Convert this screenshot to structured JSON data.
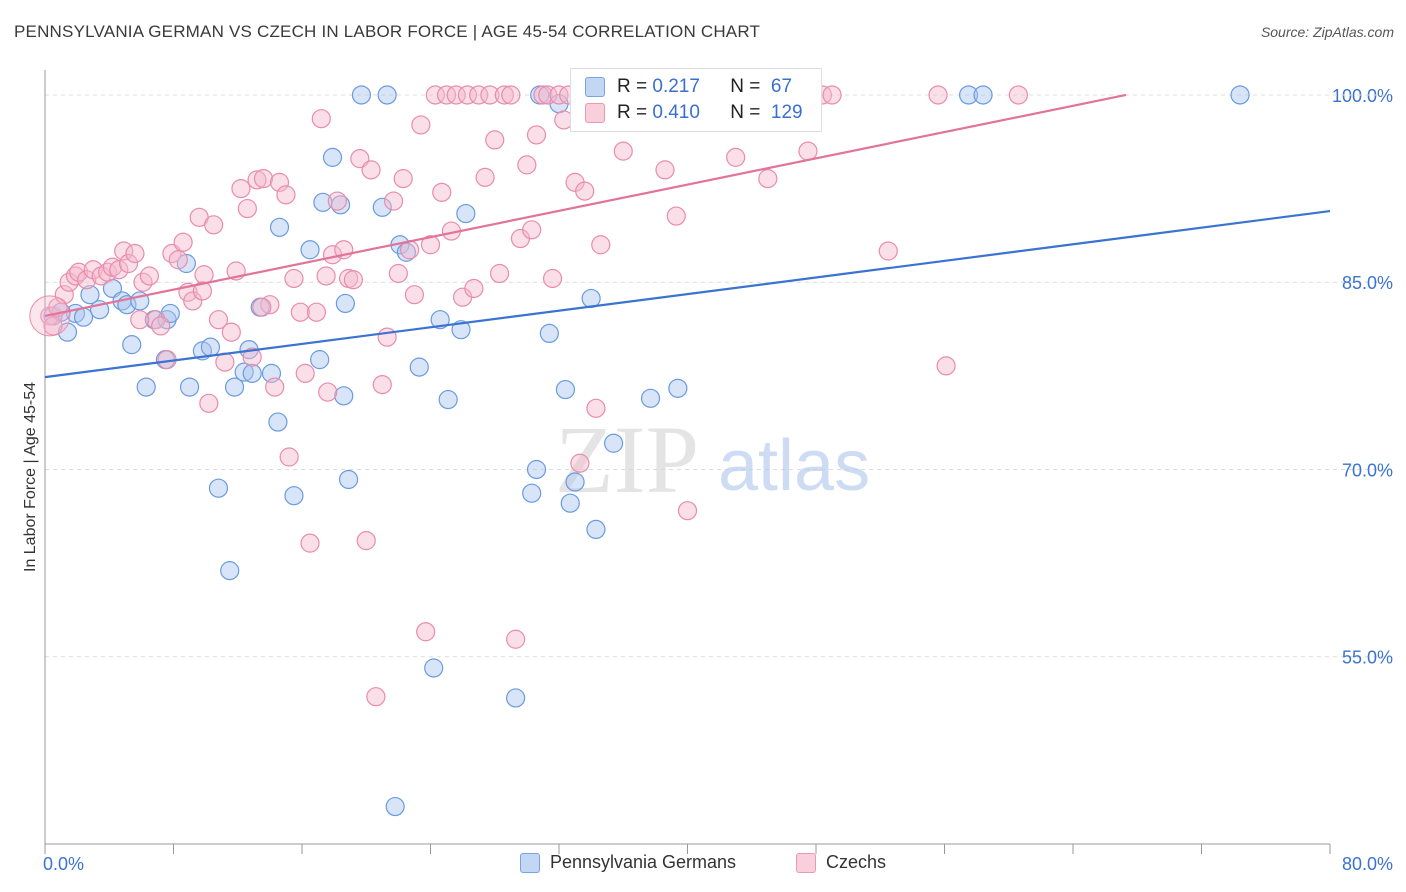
{
  "title": "PENNSYLVANIA GERMAN VS CZECH IN LABOR FORCE | AGE 45-54 CORRELATION CHART",
  "source": "Source: ZipAtlas.com",
  "watermark": {
    "zip": "ZIP",
    "atlas": "atlas"
  },
  "legend": {
    "rows": [
      {
        "r_label": "R =",
        "r_value": "0.217",
        "n_label": "N =",
        "n_value": "67",
        "color": "#a9c4ee"
      },
      {
        "r_label": "R =",
        "r_value": "0.410",
        "n_label": "N =",
        "n_value": "129",
        "color": "#f5b8cc"
      }
    ]
  },
  "bottom_legend": [
    {
      "label": "Pennsylvania Germans",
      "color": "#a9c4ee"
    },
    {
      "label": "Czechs",
      "color": "#f5b8cc"
    }
  ],
  "chart_data": {
    "type": "scatter",
    "title": "PENNSYLVANIA GERMAN VS CZECH IN LABOR FORCE | AGE 45-54 CORRELATION CHART",
    "xlabel": "",
    "ylabel": "In Labor Force | Age 45-54",
    "xlim": [
      0,
      80
    ],
    "ylim": [
      40,
      102
    ],
    "x_tick_labels": [
      "0.0%",
      "80.0%"
    ],
    "y_tick_labels": [
      "55.0%",
      "70.0%",
      "85.0%",
      "100.0%"
    ],
    "y_ticks": [
      55,
      70,
      85,
      100
    ],
    "grid": true,
    "series": [
      {
        "name": "Pennsylvania Germans",
        "color": "#6a9be0",
        "fill": "#a9c4ee",
        "trend": {
          "x": [
            0,
            80
          ],
          "y": [
            77.4,
            90.7
          ],
          "color": "#3a73d1"
        },
        "points": [
          [
            0.5,
            82.3
          ],
          [
            1.4,
            81.0
          ],
          [
            1.9,
            82.5
          ],
          [
            2.4,
            82.2
          ],
          [
            2.8,
            84.0
          ],
          [
            3.4,
            82.8
          ],
          [
            4.2,
            84.5
          ],
          [
            4.8,
            83.5
          ],
          [
            5.1,
            83.2
          ],
          [
            5.4,
            80.0
          ],
          [
            5.9,
            83.5
          ],
          [
            6.3,
            76.6
          ],
          [
            6.8,
            82.0
          ],
          [
            7.5,
            78.8
          ],
          [
            7.6,
            82.0
          ],
          [
            7.8,
            82.5
          ],
          [
            8.8,
            86.5
          ],
          [
            9.0,
            76.6
          ],
          [
            9.8,
            79.5
          ],
          [
            10.3,
            79.8
          ],
          [
            10.8,
            68.5
          ],
          [
            11.5,
            61.9
          ],
          [
            11.8,
            76.6
          ],
          [
            12.4,
            77.8
          ],
          [
            12.7,
            79.6
          ],
          [
            12.9,
            77.7
          ],
          [
            13.4,
            83.0
          ],
          [
            14.1,
            77.7
          ],
          [
            14.5,
            73.8
          ],
          [
            14.6,
            89.4
          ],
          [
            15.5,
            67.9
          ],
          [
            16.5,
            87.6
          ],
          [
            17.1,
            78.8
          ],
          [
            17.3,
            91.4
          ],
          [
            17.9,
            95.0
          ],
          [
            18.6,
            75.9
          ],
          [
            18.9,
            69.2
          ],
          [
            18.4,
            91.2
          ],
          [
            18.7,
            83.3
          ],
          [
            19.7,
            100.0
          ],
          [
            21.0,
            91.0
          ],
          [
            21.3,
            100.0
          ],
          [
            22.1,
            88.0
          ],
          [
            22.5,
            87.4
          ],
          [
            23.3,
            78.2
          ],
          [
            24.2,
            54.1
          ],
          [
            24.6,
            82.0
          ],
          [
            25.1,
            75.6
          ],
          [
            25.9,
            81.2
          ],
          [
            26.2,
            90.5
          ],
          [
            29.3,
            51.7
          ],
          [
            30.3,
            68.1
          ],
          [
            30.6,
            70.0
          ],
          [
            30.8,
            100.0
          ],
          [
            31.4,
            80.9
          ],
          [
            32.0,
            99.3
          ],
          [
            32.4,
            76.4
          ],
          [
            32.7,
            67.3
          ],
          [
            33.0,
            69.0
          ],
          [
            34.0,
            83.7
          ],
          [
            34.3,
            65.2
          ],
          [
            35.4,
            72.1
          ],
          [
            37.7,
            75.7
          ],
          [
            39.4,
            76.5
          ],
          [
            21.8,
            43.0
          ],
          [
            57.5,
            100.0
          ],
          [
            58.4,
            100.0
          ],
          [
            74.4,
            100.0
          ],
          [
            1.0,
            82.6
          ]
        ]
      },
      {
        "name": "Czechs",
        "color": "#e98cab",
        "fill": "#f5b8cc",
        "trend": {
          "x": [
            0,
            67.3
          ],
          "y": [
            82.3,
            100.0
          ],
          "color": "#e2739a"
        },
        "points": [
          [
            0.3,
            82.3
          ],
          [
            0.5,
            81.5
          ],
          [
            0.8,
            83.0
          ],
          [
            1.2,
            84.0
          ],
          [
            1.5,
            85.0
          ],
          [
            1.9,
            85.5
          ],
          [
            2.1,
            85.8
          ],
          [
            2.6,
            85.2
          ],
          [
            3.0,
            86.0
          ],
          [
            3.5,
            85.5
          ],
          [
            3.9,
            85.8
          ],
          [
            4.2,
            86.2
          ],
          [
            4.6,
            86.0
          ],
          [
            4.9,
            87.5
          ],
          [
            5.2,
            86.5
          ],
          [
            5.6,
            87.3
          ],
          [
            6.1,
            85.0
          ],
          [
            6.5,
            85.5
          ],
          [
            6.9,
            82.0
          ],
          [
            7.2,
            81.5
          ],
          [
            7.6,
            78.8
          ],
          [
            7.9,
            87.3
          ],
          [
            8.3,
            86.8
          ],
          [
            8.6,
            88.2
          ],
          [
            8.9,
            84.2
          ],
          [
            9.2,
            83.5
          ],
          [
            9.6,
            90.2
          ],
          [
            9.9,
            85.6
          ],
          [
            10.2,
            75.3
          ],
          [
            10.5,
            89.6
          ],
          [
            10.8,
            82.0
          ],
          [
            11.2,
            78.6
          ],
          [
            11.6,
            81.0
          ],
          [
            11.9,
            85.9
          ],
          [
            12.2,
            92.5
          ],
          [
            12.6,
            90.9
          ],
          [
            12.9,
            79.0
          ],
          [
            13.2,
            93.2
          ],
          [
            13.6,
            93.3
          ],
          [
            14.0,
            83.2
          ],
          [
            14.3,
            76.6
          ],
          [
            14.6,
            93.0
          ],
          [
            15.0,
            92.0
          ],
          [
            15.2,
            71.0
          ],
          [
            15.5,
            85.3
          ],
          [
            15.9,
            82.6
          ],
          [
            16.2,
            77.7
          ],
          [
            16.5,
            64.1
          ],
          [
            16.9,
            82.6
          ],
          [
            17.2,
            98.1
          ],
          [
            17.6,
            76.2
          ],
          [
            17.9,
            87.2
          ],
          [
            18.2,
            91.5
          ],
          [
            18.6,
            87.6
          ],
          [
            18.9,
            85.3
          ],
          [
            19.2,
            85.2
          ],
          [
            19.6,
            94.9
          ],
          [
            20.0,
            64.3
          ],
          [
            20.3,
            94.0
          ],
          [
            20.6,
            51.8
          ],
          [
            21.0,
            76.8
          ],
          [
            21.3,
            80.6
          ],
          [
            21.7,
            91.5
          ],
          [
            22.0,
            85.7
          ],
          [
            22.3,
            93.3
          ],
          [
            22.7,
            87.6
          ],
          [
            23.0,
            84.0
          ],
          [
            23.4,
            97.6
          ],
          [
            23.7,
            57.0
          ],
          [
            24.0,
            88.0
          ],
          [
            24.3,
            100.0
          ],
          [
            24.7,
            92.2
          ],
          [
            25.0,
            100.0
          ],
          [
            25.3,
            89.1
          ],
          [
            25.6,
            100.0
          ],
          [
            26.0,
            83.8
          ],
          [
            26.3,
            100.0
          ],
          [
            26.7,
            84.5
          ],
          [
            27.0,
            100.0
          ],
          [
            27.4,
            93.4
          ],
          [
            27.7,
            100.0
          ],
          [
            28.0,
            96.4
          ],
          [
            28.3,
            85.7
          ],
          [
            28.6,
            100.0
          ],
          [
            29.0,
            100.0
          ],
          [
            29.3,
            56.4
          ],
          [
            29.6,
            88.5
          ],
          [
            30.0,
            94.4
          ],
          [
            30.3,
            89.2
          ],
          [
            30.6,
            96.8
          ],
          [
            31.0,
            100.0
          ],
          [
            31.3,
            100.0
          ],
          [
            31.6,
            85.3
          ],
          [
            32.0,
            100.0
          ],
          [
            32.3,
            98.0
          ],
          [
            32.6,
            100.0
          ],
          [
            33.0,
            93.0
          ],
          [
            33.3,
            70.5
          ],
          [
            33.6,
            92.3
          ],
          [
            34.0,
            100.0
          ],
          [
            34.3,
            74.9
          ],
          [
            34.6,
            88.0
          ],
          [
            35.0,
            100.0
          ],
          [
            35.4,
            100.0
          ],
          [
            36.0,
            95.5
          ],
          [
            36.6,
            100.0
          ],
          [
            37.1,
            100.0
          ],
          [
            38.0,
            100.0
          ],
          [
            38.6,
            94.0
          ],
          [
            39.3,
            90.3
          ],
          [
            40.0,
            66.7
          ],
          [
            40.5,
            100.0
          ],
          [
            41.0,
            100.0
          ],
          [
            41.6,
            100.0
          ],
          [
            42.3,
            100.0
          ],
          [
            43.0,
            95.0
          ],
          [
            44.0,
            100.0
          ],
          [
            45.0,
            93.3
          ],
          [
            45.6,
            100.0
          ],
          [
            46.5,
            100.0
          ],
          [
            47.5,
            95.5
          ],
          [
            48.4,
            100.0
          ],
          [
            49.0,
            100.0
          ],
          [
            52.5,
            87.5
          ],
          [
            55.6,
            100.0
          ],
          [
            56.1,
            78.3
          ],
          [
            60.6,
            100.0
          ],
          [
            5.9,
            82.0
          ],
          [
            9.8,
            84.3
          ],
          [
            13.5,
            83.0
          ],
          [
            17.5,
            85.5
          ]
        ]
      }
    ]
  }
}
